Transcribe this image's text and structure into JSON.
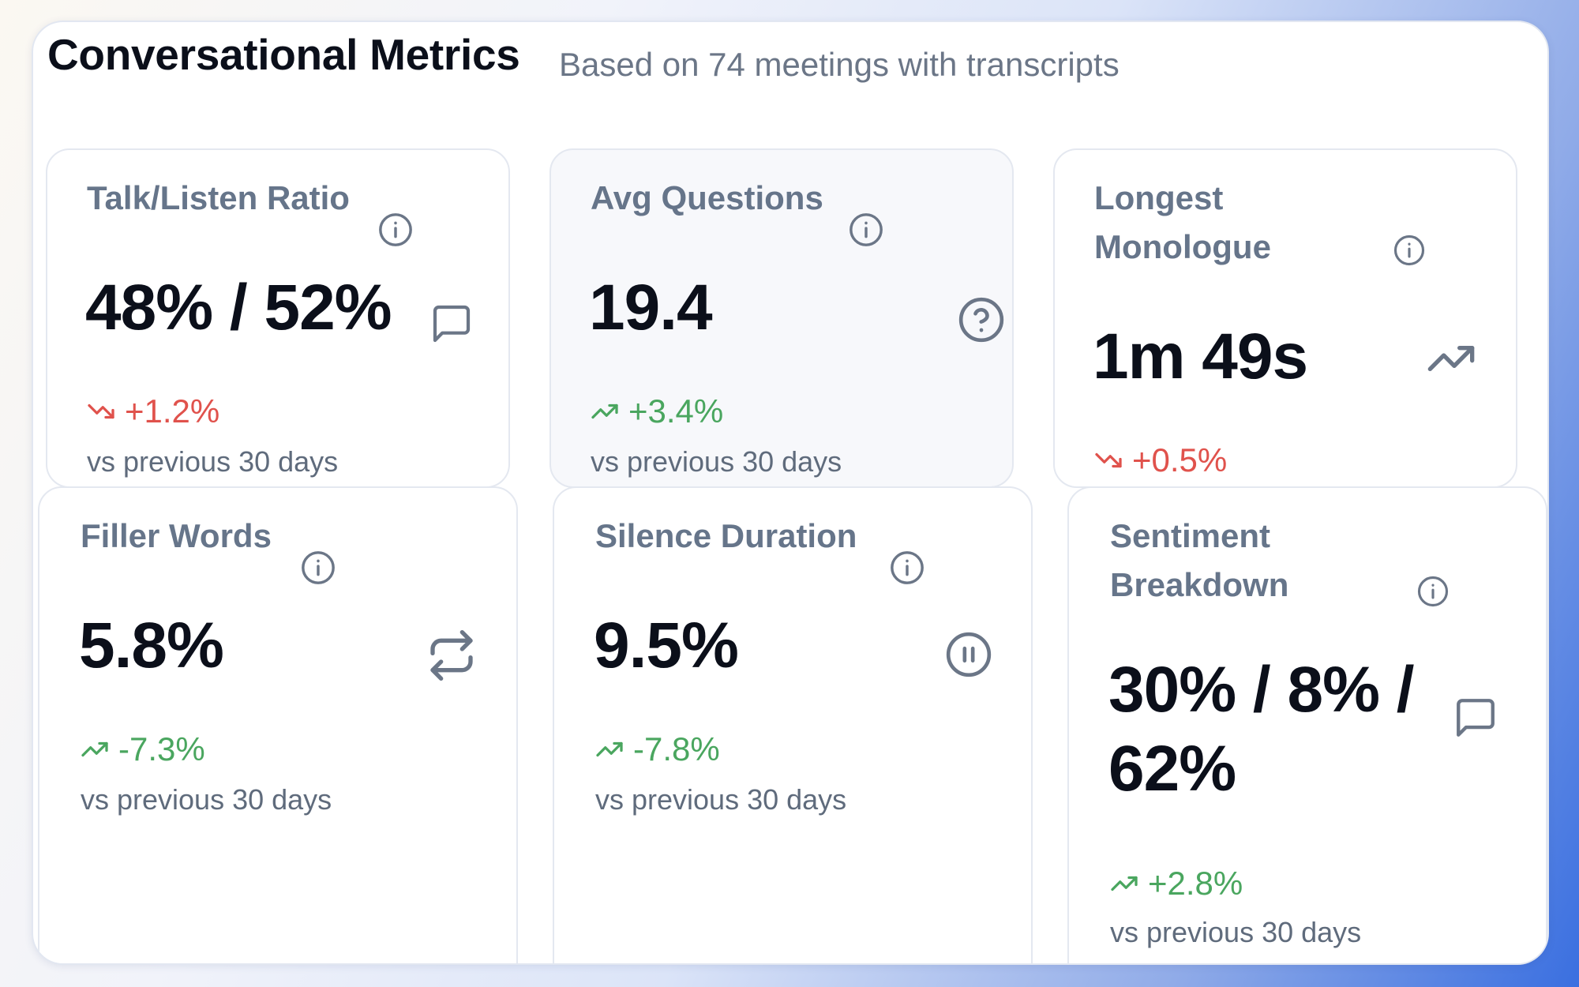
{
  "header": {
    "title": "Conversational Metrics",
    "subtitle": "Based on 74 meetings with transcripts"
  },
  "colors": {
    "positive": "#4aa65f",
    "negative": "#e0524c",
    "label": "#66758a",
    "value": "#0b0f1a"
  },
  "cards": [
    {
      "id": "talk-listen-ratio",
      "label": "Talk/Listen Ratio",
      "value": "48% / 52%",
      "trend": "+1.2%",
      "trend_direction": "down",
      "period": "vs previous 30 days",
      "icon": "message-square-icon"
    },
    {
      "id": "avg-questions",
      "label": "Avg Questions",
      "value": "19.4",
      "trend": "+3.4%",
      "trend_direction": "up",
      "period": "vs previous 30 days",
      "icon": "help-circle-icon"
    },
    {
      "id": "longest-monologue",
      "label": "Longest Monologue",
      "value": "1m 49s",
      "trend": "+0.5%",
      "trend_direction": "down",
      "period": "",
      "icon": "trending-up-icon"
    },
    {
      "id": "filler-words",
      "label": "Filler Words",
      "value": "5.8%",
      "trend": "-7.3%",
      "trend_direction": "up",
      "period": "vs previous 30 days",
      "icon": "repeat-icon"
    },
    {
      "id": "silence-duration",
      "label": "Silence Duration",
      "value": "9.5%",
      "trend": "-7.8%",
      "trend_direction": "up",
      "period": "vs previous 30 days",
      "icon": "pause-circle-icon"
    },
    {
      "id": "sentiment-breakdown",
      "label": "Sentiment Breakdown",
      "value": "30% / 8% / 62%",
      "trend": "+2.8%",
      "trend_direction": "up",
      "period": "vs previous 30 days",
      "icon": "message-square-icon"
    }
  ]
}
